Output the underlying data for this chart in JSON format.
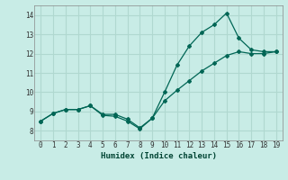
{
  "xlabel": "Humidex (Indice chaleur)",
  "xlim": [
    -0.5,
    19.5
  ],
  "ylim": [
    7.5,
    14.5
  ],
  "xticks": [
    0,
    1,
    2,
    3,
    4,
    5,
    6,
    7,
    8,
    9,
    10,
    11,
    12,
    13,
    14,
    15,
    16,
    17,
    18,
    19
  ],
  "yticks": [
    8,
    9,
    10,
    11,
    12,
    13,
    14
  ],
  "background_color": "#c8ece6",
  "grid_color": "#b0d8d0",
  "line_color": "#006655",
  "line1_x": [
    0,
    1,
    2,
    3,
    4,
    5,
    6,
    7,
    8,
    9,
    10,
    11,
    12,
    13,
    14,
    15,
    16,
    17,
    18,
    19
  ],
  "line1_y": [
    8.5,
    8.9,
    9.1,
    9.1,
    9.3,
    8.8,
    8.75,
    8.5,
    8.1,
    8.65,
    10.0,
    11.4,
    12.4,
    13.1,
    13.5,
    14.1,
    12.8,
    12.2,
    12.1,
    12.1
  ],
  "line2_x": [
    0,
    1,
    2,
    3,
    4,
    5,
    6,
    7,
    8,
    9,
    10,
    11,
    12,
    13,
    14,
    15,
    16,
    17,
    18,
    19
  ],
  "line2_y": [
    8.5,
    8.9,
    9.1,
    9.1,
    9.3,
    8.85,
    8.85,
    8.6,
    8.15,
    8.65,
    9.55,
    10.1,
    10.6,
    11.1,
    11.5,
    11.9,
    12.1,
    12.0,
    12.0,
    12.1
  ]
}
